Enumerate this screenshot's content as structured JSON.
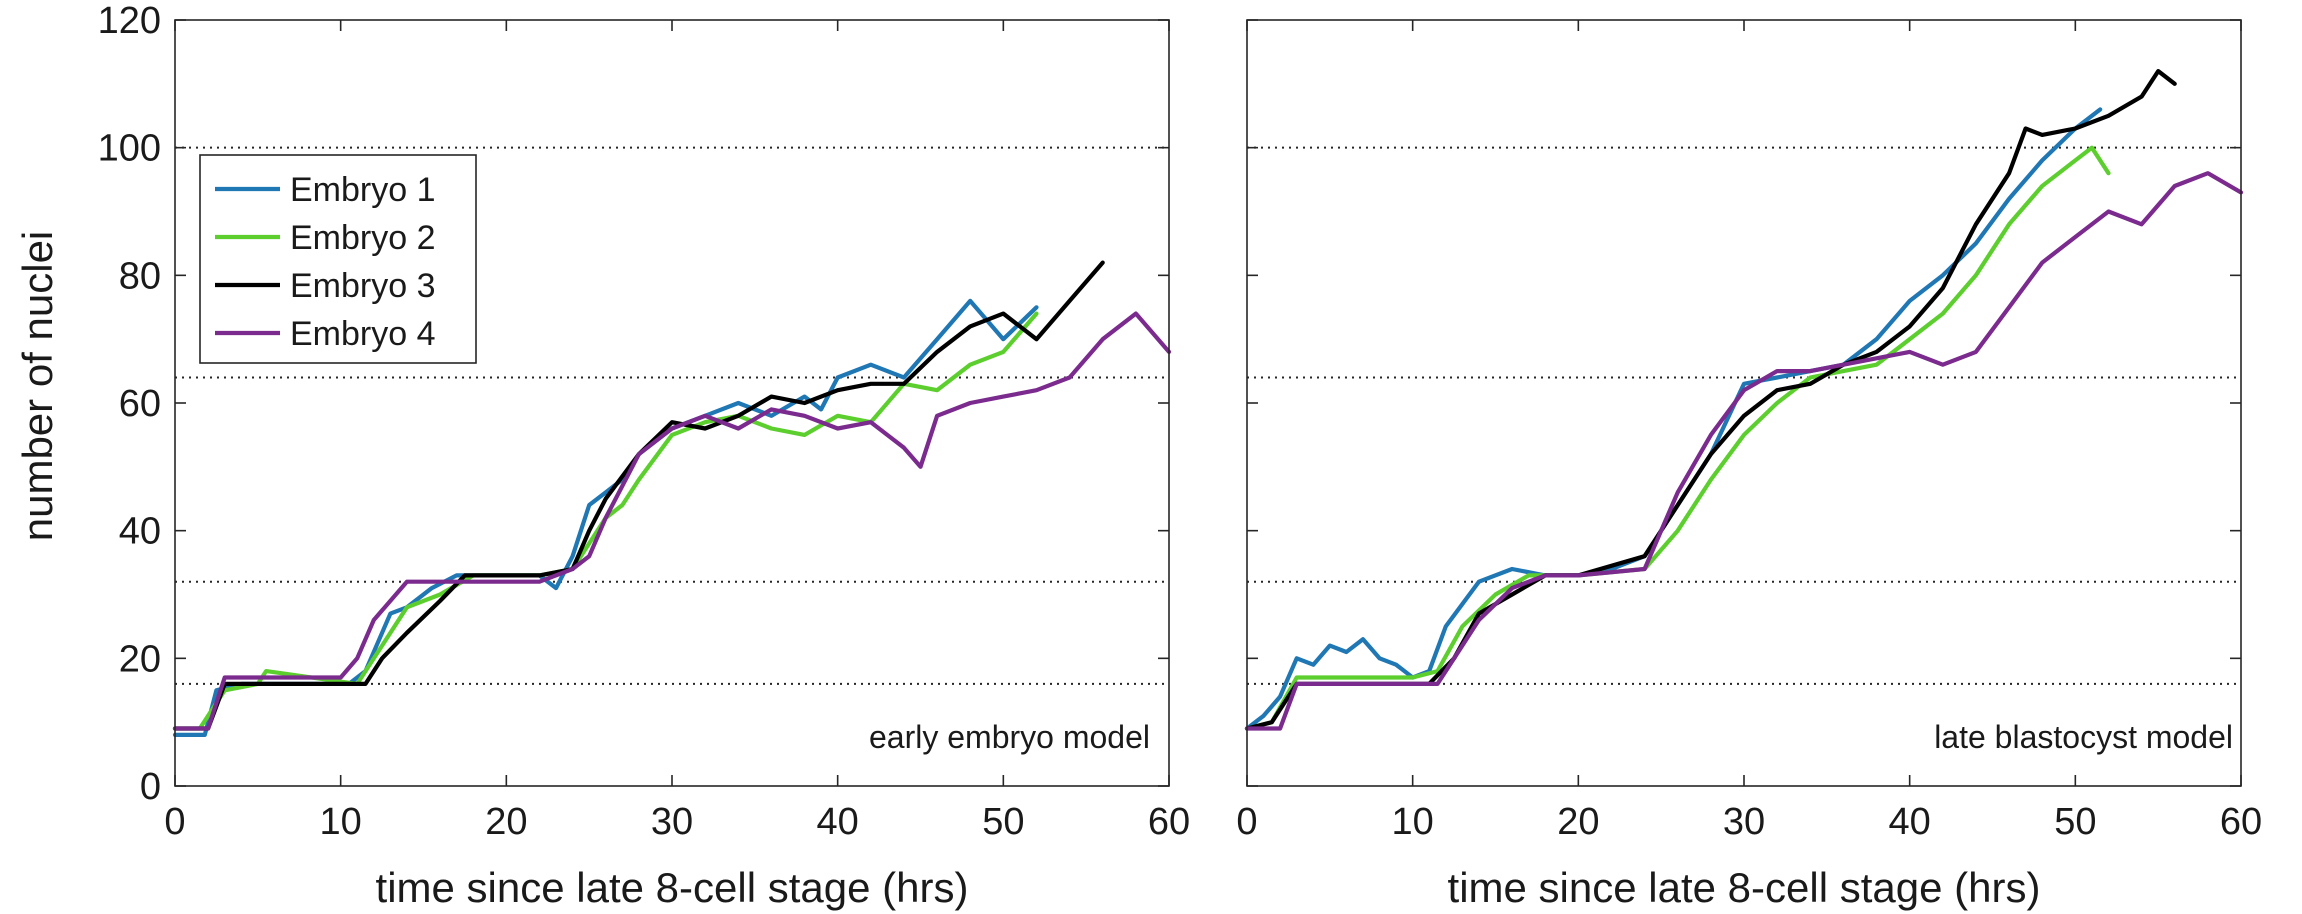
{
  "figure": {
    "shared_ylabel": "number of nuclei",
    "y_ticks": [
      "0",
      "20",
      "40",
      "60",
      "80",
      "100",
      "120"
    ],
    "x_ticks": [
      "0",
      "10",
      "20",
      "30",
      "40",
      "50",
      "60"
    ]
  },
  "legend": {
    "entries": [
      {
        "label": "Embryo 1",
        "color": "#1f77b4"
      },
      {
        "label": "Embryo 2",
        "color": "#5ccf2e"
      },
      {
        "label": "Embryo 3",
        "color": "#000000"
      },
      {
        "label": "Embryo 4",
        "color": "#7b2a8e"
      }
    ]
  },
  "chart_data": [
    {
      "type": "line",
      "annotation": "early embryo model",
      "xlabel": "time since late 8-cell stage (hrs)",
      "ylabel": "number of nuclei",
      "xlim": [
        0,
        60
      ],
      "ylim": [
        0,
        120
      ],
      "grid": false,
      "legend_position": "upper-left",
      "reference_lines_y": [
        16,
        32,
        64,
        100
      ],
      "series": [
        {
          "name": "Embryo 1",
          "color": "#1f77b4",
          "x": [
            0,
            1.8,
            2.5,
            4,
            10.5,
            11.5,
            13,
            14,
            15.5,
            17,
            22,
            23,
            24,
            25,
            26,
            27,
            28,
            30,
            32,
            34,
            36,
            38,
            39,
            40,
            42,
            44,
            46,
            48,
            50,
            52
          ],
          "y": [
            8,
            8,
            15,
            16,
            16,
            18,
            27,
            28,
            31,
            33,
            33,
            31,
            36,
            44,
            46,
            48,
            52,
            56,
            58,
            60,
            58,
            61,
            59,
            64,
            66,
            64,
            70,
            76,
            70,
            75
          ]
        },
        {
          "name": "Embryo 2",
          "color": "#5ccf2e",
          "x": [
            0,
            1.5,
            3,
            5,
            5.5,
            11,
            12.5,
            14,
            16,
            18,
            22,
            24,
            25,
            26,
            27,
            28,
            30,
            32,
            34,
            36,
            38,
            40,
            42,
            44,
            46,
            48,
            50,
            52
          ],
          "y": [
            9,
            9,
            15,
            16,
            18,
            16,
            22,
            28,
            30,
            33,
            33,
            34,
            38,
            42,
            44,
            48,
            55,
            57,
            58,
            56,
            55,
            58,
            57,
            63,
            62,
            66,
            68,
            74
          ]
        },
        {
          "name": "Embryo 3",
          "color": "#000000",
          "x": [
            0,
            2,
            3,
            11.5,
            12.5,
            14,
            16,
            17.5,
            22,
            24,
            25,
            26,
            28,
            30,
            32,
            34,
            36,
            38,
            40,
            42,
            44,
            46,
            48,
            50,
            52,
            54,
            56
          ],
          "y": [
            9,
            9,
            16,
            16,
            20,
            24,
            29,
            33,
            33,
            34,
            40,
            45,
            52,
            57,
            56,
            58,
            61,
            60,
            62,
            63,
            63,
            68,
            72,
            74,
            70,
            76,
            82
          ]
        },
        {
          "name": "Embryo 4",
          "color": "#7b2a8e",
          "x": [
            0,
            2,
            3,
            10,
            11,
            12,
            14,
            22,
            24,
            25,
            26,
            28,
            30,
            32,
            34,
            36,
            38,
            40,
            42,
            44,
            45,
            46,
            48,
            50,
            52,
            54,
            56,
            58,
            60
          ],
          "y": [
            9,
            9,
            17,
            17,
            20,
            26,
            32,
            32,
            34,
            36,
            42,
            52,
            56,
            58,
            56,
            59,
            58,
            56,
            57,
            53,
            50,
            58,
            60,
            61,
            62,
            64,
            70,
            74,
            68
          ]
        }
      ]
    },
    {
      "type": "line",
      "annotation": "late blastocyst model",
      "xlabel": "time since late 8-cell stage (hrs)",
      "ylabel": "",
      "xlim": [
        0,
        60
      ],
      "ylim": [
        0,
        120
      ],
      "grid": false,
      "reference_lines_y": [
        16,
        32,
        64,
        100
      ],
      "series": [
        {
          "name": "Embryo 1",
          "color": "#1f77b4",
          "x": [
            0,
            1,
            2,
            3,
            4,
            5,
            6,
            7,
            8,
            9,
            10,
            11,
            12,
            14,
            16,
            18,
            20,
            22,
            24,
            26,
            28,
            30,
            32,
            34,
            36,
            38,
            40,
            42,
            44,
            46,
            48,
            50,
            51.5
          ],
          "y": [
            9,
            11,
            14,
            20,
            19,
            22,
            21,
            23,
            20,
            19,
            17,
            18,
            25,
            32,
            34,
            33,
            33,
            34,
            36,
            44,
            52,
            63,
            64,
            65,
            66,
            70,
            76,
            80,
            85,
            92,
            98,
            103,
            106
          ]
        },
        {
          "name": "Embryo 2",
          "color": "#5ccf2e",
          "x": [
            0,
            1.5,
            3,
            10,
            11.5,
            13,
            15,
            17,
            20,
            24,
            26,
            28,
            30,
            32,
            34,
            36,
            38,
            40,
            42,
            44,
            46,
            48,
            50,
            51,
            52
          ],
          "y": [
            9,
            10,
            17,
            17,
            18,
            25,
            30,
            33,
            33,
            34,
            40,
            48,
            55,
            60,
            64,
            65,
            66,
            70,
            74,
            80,
            88,
            94,
            98,
            100,
            96
          ]
        },
        {
          "name": "Embryo 3",
          "color": "#000000",
          "x": [
            0,
            1.5,
            3,
            11,
            12.5,
            14,
            16,
            18,
            20,
            24,
            26,
            28,
            30,
            32,
            34,
            36,
            38,
            40,
            42,
            44,
            46,
            47,
            48,
            50,
            52,
            54,
            55,
            56
          ],
          "y": [
            9,
            10,
            16,
            16,
            20,
            27,
            30,
            33,
            33,
            36,
            44,
            52,
            58,
            62,
            63,
            66,
            68,
            72,
            78,
            88,
            96,
            103,
            102,
            103,
            105,
            108,
            112,
            110
          ]
        },
        {
          "name": "Embryo 4",
          "color": "#7b2a8e",
          "x": [
            0,
            2,
            3,
            11.5,
            12.5,
            14,
            16,
            18,
            20,
            24,
            26,
            28,
            30,
            32,
            34,
            36,
            38,
            40,
            42,
            44,
            46,
            48,
            50,
            52,
            54,
            56,
            58,
            60
          ],
          "y": [
            9,
            9,
            16,
            16,
            20,
            26,
            31,
            33,
            33,
            34,
            46,
            55,
            62,
            65,
            65,
            66,
            67,
            68,
            66,
            68,
            75,
            82,
            86,
            90,
            88,
            94,
            96,
            93
          ]
        }
      ]
    }
  ]
}
